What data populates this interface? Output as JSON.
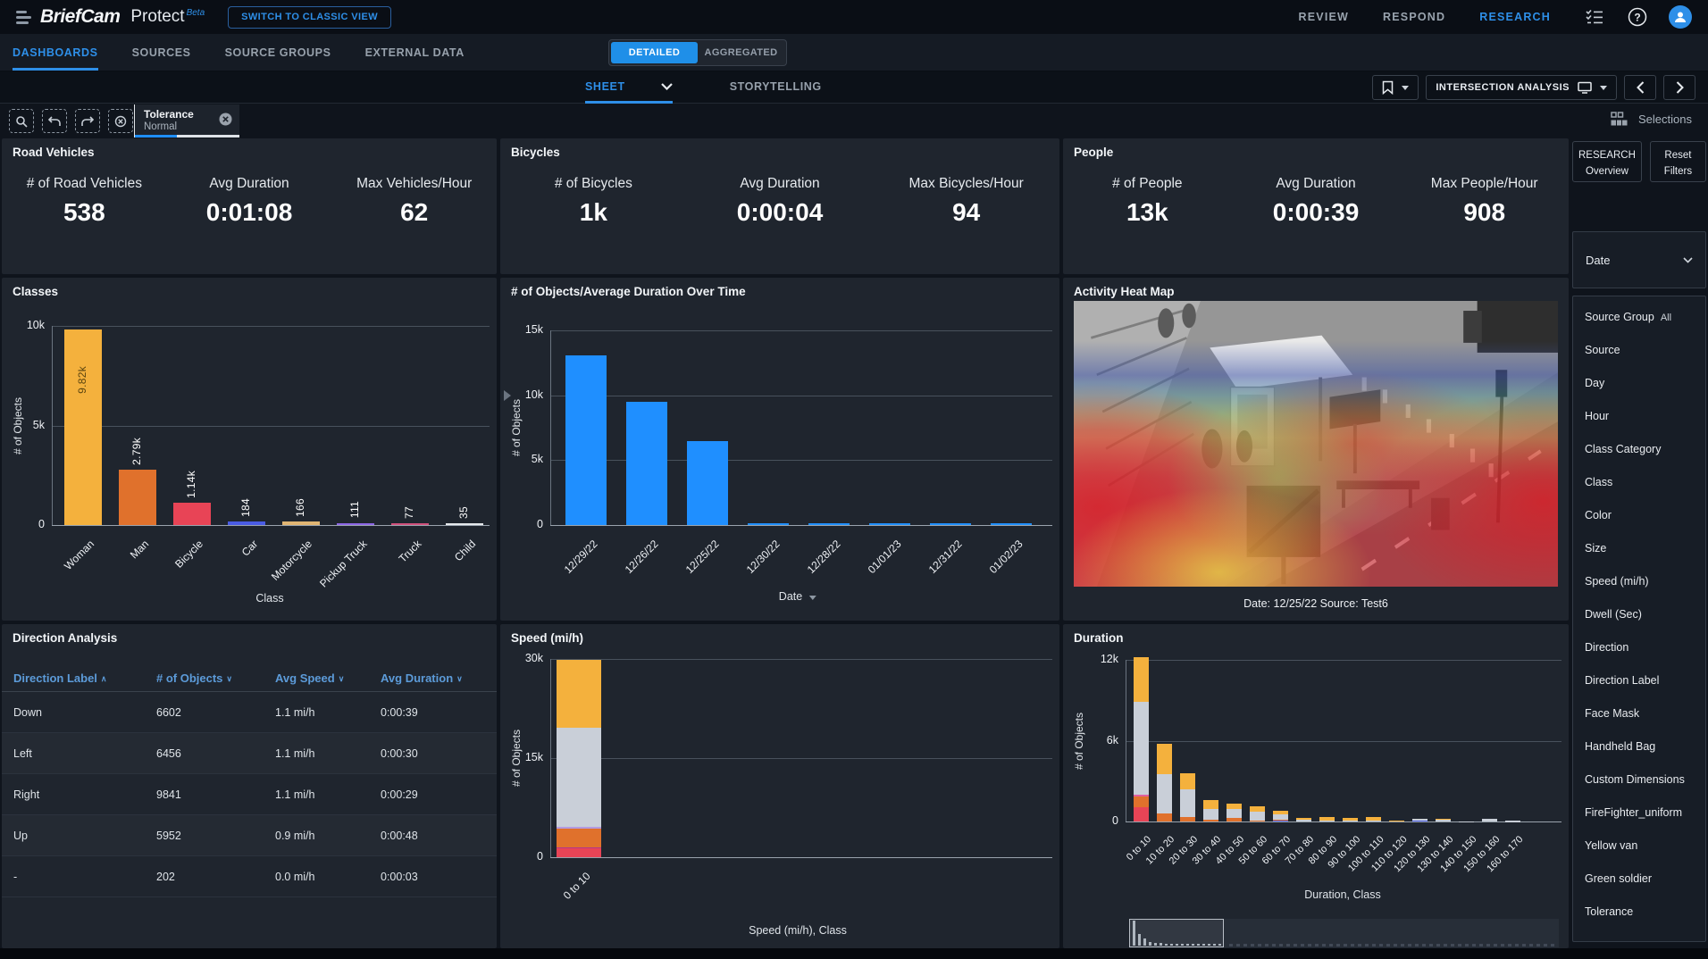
{
  "accent": "#1f8fe8",
  "header": {
    "brand": "BriefCam",
    "product": "Protect",
    "beta": "Beta",
    "switch_view": "SWITCH TO CLASSIC VIEW",
    "nav": [
      {
        "label": "REVIEW",
        "active": false
      },
      {
        "label": "RESPOND",
        "active": false
      },
      {
        "label": "RESEARCH",
        "active": true
      }
    ]
  },
  "main_tabs": [
    {
      "label": "DASHBOARDS",
      "active": true
    },
    {
      "label": "SOURCES",
      "active": false
    },
    {
      "label": "SOURCE GROUPS",
      "active": false
    },
    {
      "label": "EXTERNAL DATA",
      "active": false
    }
  ],
  "view_toggle": [
    {
      "label": "DETAILED",
      "active": true
    },
    {
      "label": "AGGREGATED",
      "active": false
    }
  ],
  "sheet_bar": {
    "tabs": [
      {
        "label": "SHEET",
        "active": true
      },
      {
        "label": "STORYTELLING",
        "active": false
      }
    ],
    "board_selector": "INTERSECTION ANALYSIS"
  },
  "toolbar": {
    "filter_chip": {
      "title": "Tolerance",
      "value": "Normal"
    },
    "selections_label": "Selections"
  },
  "kpi_panels": [
    {
      "title": "Road Vehicles",
      "metrics": [
        {
          "label": "# of Road Vehicles",
          "value": "538"
        },
        {
          "label": "Avg Duration",
          "value": "0:01:08"
        },
        {
          "label": "Max Vehicles/Hour",
          "value": "62"
        }
      ]
    },
    {
      "title": "Bicycles",
      "metrics": [
        {
          "label": "# of Bicycles",
          "value": "1k"
        },
        {
          "label": "Avg Duration",
          "value": "0:00:04"
        },
        {
          "label": "Max Bicycles/Hour",
          "value": "94"
        }
      ]
    },
    {
      "title": "People",
      "metrics": [
        {
          "label": "# of People",
          "value": "13k"
        },
        {
          "label": "Avg Duration",
          "value": "0:00:39"
        },
        {
          "label": "Max People/Hour",
          "value": "908"
        }
      ]
    }
  ],
  "chart_data": [
    {
      "id": "classes",
      "type": "bar",
      "title": "Classes",
      "xlabel": "Class",
      "ylabel": "# of Objects",
      "ylim": [
        0,
        10000
      ],
      "yticks": [
        "10k",
        "5k",
        "0"
      ],
      "grid": true,
      "categories": [
        "Woman",
        "Man",
        "Bicycle",
        "Car",
        "Motorcycle",
        "Pickup Truck",
        "Truck",
        "Child"
      ],
      "values": [
        9820,
        2790,
        1140,
        184,
        166,
        111,
        77,
        35
      ],
      "value_labels": [
        "9.82k",
        "2.79k",
        "1.14k",
        "184",
        "166",
        "111",
        "77",
        "35"
      ],
      "colors": [
        "#f4b13d",
        "#e0712c",
        "#e84456",
        "#4a5ce4",
        "#e0b573",
        "#8d67e6",
        "#d1517c",
        "#e6e9ec"
      ]
    },
    {
      "id": "objects_over_time",
      "type": "bar",
      "title": "# of Objects/Average Duration Over Time",
      "xlabel": "Date",
      "ylabel": "# of Objects",
      "ylim": [
        0,
        15000
      ],
      "yticks": [
        "15k",
        "10k",
        "5k",
        "0"
      ],
      "grid": true,
      "categories": [
        "12/29/22",
        "12/26/22",
        "12/25/22",
        "12/30/22",
        "12/28/22",
        "01/01/23",
        "12/31/22",
        "01/02/23"
      ],
      "values": [
        13100,
        9500,
        6500,
        130,
        110,
        40,
        25,
        25
      ],
      "color": "#1f8fff"
    },
    {
      "id": "heatmap",
      "type": "heatmap",
      "title": "Activity Heat Map",
      "caption": "Date: 12/25/22 Source: Test6"
    },
    {
      "id": "speed",
      "type": "bar",
      "stacked": true,
      "title": "Speed (mi/h)",
      "xlabel": "Speed (mi/h), Class",
      "ylabel": "# of Objects",
      "ylim": [
        0,
        30000
      ],
      "yticks": [
        "30k",
        "15k",
        "0"
      ],
      "grid": true,
      "categories": [
        "0 to 10"
      ],
      "series_colors": {
        "red": "#e84456",
        "magenta": "#b2368a",
        "orange": "#e0712c",
        "lavender": "#b49be0",
        "gray": "#c9cfd8",
        "yellow": "#f4b13d",
        "blue": "#4a5ce4",
        "pink": "#e060a0"
      },
      "stacks": [
        [
          [
            "red",
            1300
          ],
          [
            "magenta",
            200
          ],
          [
            "orange",
            2800
          ],
          [
            "lavender",
            250
          ],
          [
            "gray",
            15000
          ],
          [
            "yellow",
            10300
          ]
        ]
      ]
    },
    {
      "id": "duration",
      "type": "bar",
      "stacked": true,
      "title": "Duration",
      "xlabel": "Duration, Class",
      "ylabel": "# of Objects",
      "ylim": [
        0,
        12000
      ],
      "yticks": [
        "12k",
        "6k",
        "0"
      ],
      "grid": true,
      "categories": [
        "0 to 10",
        "10 to 20",
        "20 to 30",
        "30 to 40",
        "40 to 50",
        "50 to 60",
        "60 to 70",
        "70 to 80",
        "80 to 90",
        "90 to 100",
        "100 to 110",
        "110 to 120",
        "120 to 130",
        "130 to 140",
        "140 to 150",
        "150 to 160",
        "160 to 170"
      ],
      "series_colors": {
        "red": "#e84456",
        "orange": "#e0712c",
        "pink": "#e060a0",
        "gray": "#c9cfd8",
        "yellow": "#f4b13d",
        "blue": "#4a5ce4"
      },
      "stacks": [
        [
          [
            "red",
            1050
          ],
          [
            "orange",
            800
          ],
          [
            "pink",
            150
          ],
          [
            "gray",
            6900
          ],
          [
            "yellow",
            3300
          ]
        ],
        [
          [
            "orange",
            600
          ],
          [
            "gray",
            2900
          ],
          [
            "yellow",
            2300
          ]
        ],
        [
          [
            "orange",
            350
          ],
          [
            "gray",
            2050
          ],
          [
            "yellow",
            1200
          ]
        ],
        [
          [
            "orange",
            100
          ],
          [
            "gray",
            800
          ],
          [
            "yellow",
            700
          ]
        ],
        [
          [
            "orange",
            250
          ],
          [
            "gray",
            650
          ],
          [
            "yellow",
            400
          ]
        ],
        [
          [
            "orange",
            80
          ],
          [
            "gray",
            620
          ],
          [
            "yellow",
            400
          ]
        ],
        [
          [
            "blue",
            60
          ],
          [
            "orange",
            60
          ],
          [
            "gray",
            430
          ],
          [
            "yellow",
            250
          ]
        ],
        [
          [
            "gray",
            150
          ],
          [
            "yellow",
            60
          ]
        ],
        [
          [
            "gray",
            80
          ],
          [
            "yellow",
            220
          ]
        ],
        [
          [
            "gray",
            60
          ],
          [
            "yellow",
            190
          ]
        ],
        [
          [
            "gray",
            90
          ],
          [
            "yellow",
            210
          ]
        ],
        [
          [
            "yellow",
            100
          ]
        ],
        [
          [
            "blue",
            60
          ],
          [
            "gray",
            140
          ]
        ],
        [
          [
            "gray",
            100
          ],
          [
            "yellow",
            50
          ]
        ],
        [
          [
            "gray",
            40
          ]
        ],
        [
          [
            "gray",
            200
          ]
        ],
        [
          [
            "orange",
            30
          ],
          [
            "gray",
            40
          ]
        ]
      ],
      "minimap_values": [
        1,
        0.48,
        0.3,
        0.14,
        0.11,
        0.09,
        0.07,
        0.05,
        0.05,
        0.04,
        0.05,
        0.03,
        0.04,
        0.03,
        0.02,
        0.03,
        0.02
      ]
    }
  ],
  "direction_table": {
    "title": "Direction Analysis",
    "columns": [
      {
        "label": "Direction Label",
        "sort": "asc"
      },
      {
        "label": "# of Objects",
        "sort": "desc"
      },
      {
        "label": "Avg Speed",
        "sort": "desc"
      },
      {
        "label": "Avg Duration",
        "sort": "desc"
      }
    ],
    "rows": [
      [
        "Down",
        "6602",
        "1.1 mi/h",
        "0:00:39"
      ],
      [
        "Left",
        "6456",
        "1.1 mi/h",
        "0:00:30"
      ],
      [
        "Right",
        "9841",
        "1.1 mi/h",
        "0:00:29"
      ],
      [
        "Up",
        "5952",
        "0.9 mi/h",
        "0:00:48"
      ],
      [
        "-",
        "202",
        "0.0 mi/h",
        "0:00:03"
      ]
    ]
  },
  "sidebar": {
    "research_button": {
      "line1": "RESEARCH",
      "line2": "Overview"
    },
    "reset_button": {
      "line1": "Reset",
      "line2": "Filters"
    },
    "date_selector": "Date",
    "filters": [
      {
        "label": "Source Group",
        "value": "All"
      },
      {
        "label": "Source"
      },
      {
        "label": "Day"
      },
      {
        "label": "Hour"
      },
      {
        "label": "Class Category"
      },
      {
        "label": "Class"
      },
      {
        "label": "Color"
      },
      {
        "label": "Size"
      },
      {
        "label": "Speed (mi/h)"
      },
      {
        "label": "Dwell (Sec)"
      },
      {
        "label": "Direction"
      },
      {
        "label": "Direction Label"
      },
      {
        "label": "Face Mask"
      },
      {
        "label": "Handheld Bag"
      },
      {
        "label": "Custom Dimensions"
      },
      {
        "label": "FireFighter_uniform"
      },
      {
        "label": "Yellow van"
      },
      {
        "label": "Green soldier"
      },
      {
        "label": "Tolerance"
      }
    ]
  },
  "icons": {
    "menu-icon": "three-bars",
    "checklist-icon": "task-list",
    "help-icon": "?",
    "user-icon": "person",
    "bookmark-icon": "bookmark",
    "display-icon": "monitor",
    "chevron-left-icon": "<",
    "chevron-right-icon": ">",
    "chevron-down-icon": "v",
    "zoom-select-icon": "magnifier",
    "undo-selection-icon": "undo-arrow",
    "redo-selection-icon": "redo-arrow",
    "clear-selection-icon": "x-circle",
    "selections-grid-icon": "squares-grid",
    "close-icon": "x-circle"
  }
}
